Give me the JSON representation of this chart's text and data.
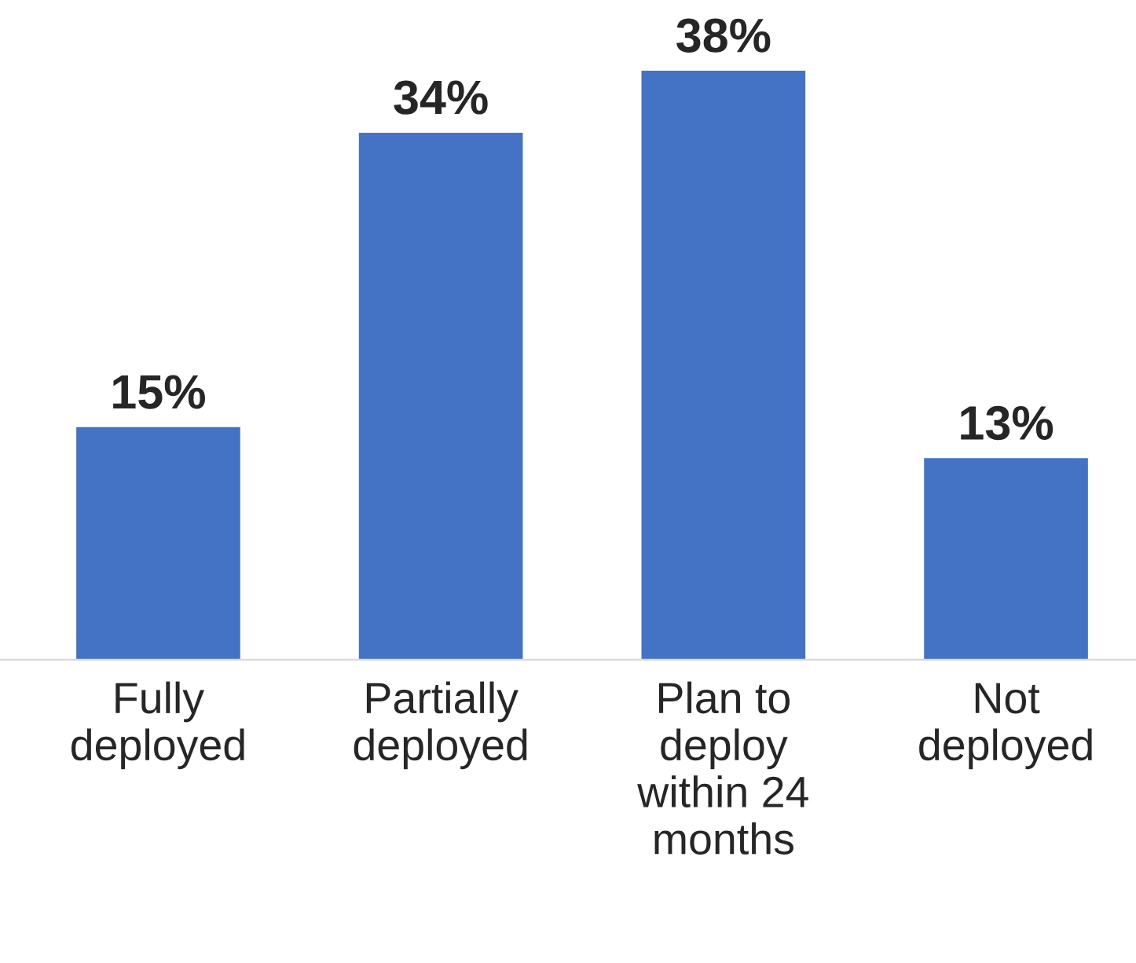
{
  "chart_data": {
    "type": "bar",
    "categories": [
      "Fully\ndeployed",
      "Partially\ndeployed",
      "Plan to\ndeploy\nwithin 24\nmonths",
      "Not\ndeployed"
    ],
    "values": [
      15,
      34,
      38,
      13
    ],
    "value_labels": [
      "15%",
      "34%",
      "38%",
      "13%"
    ],
    "color": "#4472c4",
    "grid": false,
    "legend": false
  }
}
